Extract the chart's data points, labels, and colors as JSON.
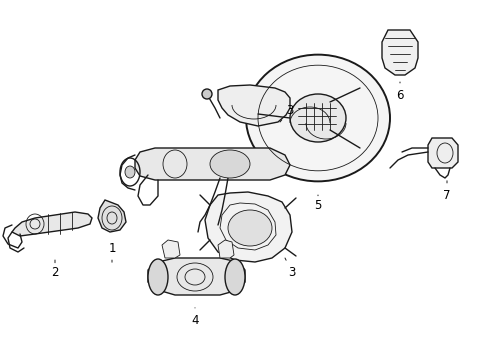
{
  "background_color": "#ffffff",
  "line_color": "#1a1a1a",
  "label_color": "#000000",
  "figsize": [
    4.9,
    3.6
  ],
  "dpi": 100,
  "lw_main": 1.0,
  "lw_thin": 0.6,
  "lw_thick": 1.4
}
